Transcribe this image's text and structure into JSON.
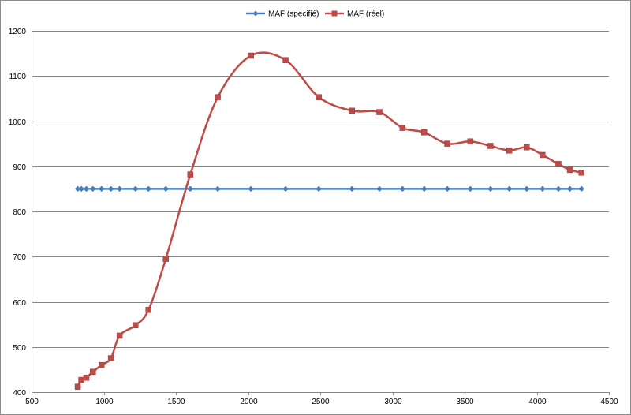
{
  "chart_data": {
    "type": "line",
    "title": "",
    "xlabel": "",
    "ylabel": "",
    "xlim": [
      500,
      4500
    ],
    "ylim": [
      400,
      1200
    ],
    "x_ticks": [
      500,
      1000,
      1500,
      2000,
      2500,
      3000,
      3500,
      4000,
      4500
    ],
    "y_ticks": [
      400,
      500,
      600,
      700,
      800,
      900,
      1000,
      1100,
      1200
    ],
    "grid": "horizontal",
    "legend_position": "top-center",
    "series": [
      {
        "name": "MAF (specifié)",
        "color": "#4a7ebb",
        "marker": "diamond",
        "smooth": false,
        "x": [
          820,
          845,
          880,
          925,
          985,
          1050,
          1110,
          1220,
          1310,
          1430,
          1600,
          1790,
          2020,
          2260,
          2490,
          2720,
          2910,
          3070,
          3220,
          3380,
          3540,
          3680,
          3810,
          3930,
          4040,
          4150,
          4230,
          4310
        ],
        "y": [
          850,
          850,
          850,
          850,
          850,
          850,
          850,
          850,
          850,
          850,
          850,
          850,
          850,
          850,
          850,
          850,
          850,
          850,
          850,
          850,
          850,
          850,
          850,
          850,
          850,
          850,
          850,
          850
        ]
      },
      {
        "name": "MAF (réel)",
        "color": "#be4b48",
        "marker": "square",
        "smooth": true,
        "x": [
          820,
          845,
          880,
          925,
          985,
          1050,
          1110,
          1220,
          1310,
          1430,
          1600,
          1790,
          2020,
          2260,
          2490,
          2720,
          2910,
          3070,
          3220,
          3380,
          3540,
          3680,
          3810,
          3930,
          4040,
          4150,
          4230,
          4310
        ],
        "y": [
          412,
          427,
          432,
          445,
          460,
          475,
          525,
          548,
          582,
          695,
          882,
          1053,
          1145,
          1135,
          1053,
          1023,
          1020,
          985,
          975,
          950,
          955,
          945,
          935,
          942,
          925,
          905,
          892,
          886
        ]
      }
    ]
  }
}
